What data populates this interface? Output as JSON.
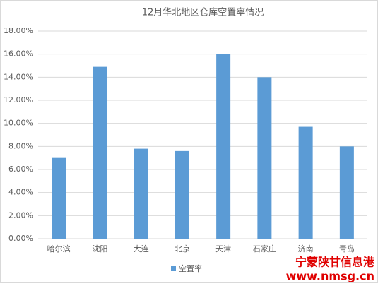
{
  "chart_data": {
    "type": "bar",
    "title": "12月华北地区仓库空置率情况",
    "categories": [
      "哈尔滨",
      "沈阳",
      "大连",
      "北京",
      "天津",
      "石家庄",
      "济南",
      "青岛"
    ],
    "series": [
      {
        "name": "空置率",
        "color": "#5b9bd5",
        "values": [
          7.0,
          14.9,
          7.8,
          7.6,
          16.0,
          14.0,
          9.7,
          8.0
        ]
      }
    ],
    "ylim": [
      0,
      18
    ],
    "yticks": [
      {
        "value": 0,
        "label": "0.00%"
      },
      {
        "value": 2,
        "label": "2.00%"
      },
      {
        "value": 4,
        "label": "4.00%"
      },
      {
        "value": 6,
        "label": "6.00%"
      },
      {
        "value": 8,
        "label": "8.00%"
      },
      {
        "value": 10,
        "label": "10.00%"
      },
      {
        "value": 12,
        "label": "12.00%"
      },
      {
        "value": 14,
        "label": "14.00%"
      },
      {
        "value": 16,
        "label": "16.00%"
      },
      {
        "value": 18,
        "label": "18.00%"
      }
    ],
    "grid": true,
    "legend": "bottom"
  },
  "watermark": {
    "name": "宁蒙陕甘信息港",
    "url": "www.nmsg.cn"
  }
}
